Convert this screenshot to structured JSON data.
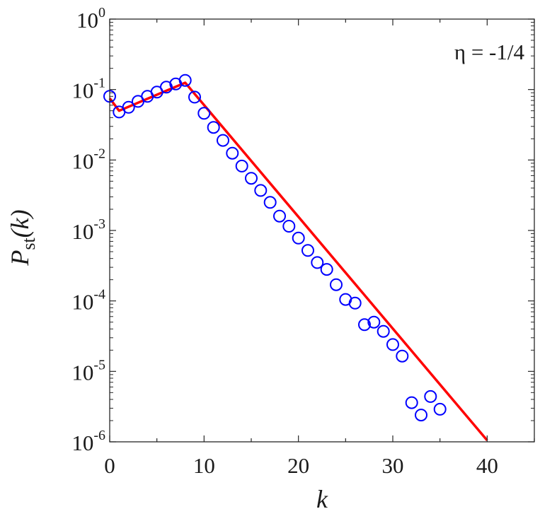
{
  "chart_data": {
    "type": "scatter",
    "xlabel": "k",
    "ylabel": {
      "main": "P",
      "subscript": "st",
      "arg": "(k)"
    },
    "xlim": [
      0,
      45
    ],
    "ylim": [
      1e-06,
      1
    ],
    "yscale": "log",
    "grid": false,
    "x_ticks": [
      {
        "value": 0,
        "label": "0"
      },
      {
        "value": 10,
        "label": "10"
      },
      {
        "value": 20,
        "label": "20"
      },
      {
        "value": 30,
        "label": "30"
      },
      {
        "value": 40,
        "label": "40"
      }
    ],
    "y_ticks": [
      {
        "value": 1e-06,
        "base": "10",
        "exp": "-6"
      },
      {
        "value": 1e-05,
        "base": "10",
        "exp": "-5"
      },
      {
        "value": 0.0001,
        "base": "10",
        "exp": "-4"
      },
      {
        "value": 0.001,
        "base": "10",
        "exp": "-3"
      },
      {
        "value": 0.01,
        "base": "10",
        "exp": "-2"
      },
      {
        "value": 0.1,
        "base": "10",
        "exp": "-1"
      },
      {
        "value": 1,
        "base": "10",
        "exp": "0"
      }
    ],
    "annotation": "η = -1/4",
    "series": [
      {
        "kind": "markers",
        "color": "#0000ff",
        "x": [
          0,
          1,
          2,
          3,
          4,
          5,
          6,
          7,
          8,
          9,
          10,
          11,
          12,
          13,
          14,
          15,
          16,
          17,
          18,
          19,
          20,
          21,
          22,
          23,
          24,
          25,
          26,
          27,
          28,
          29,
          30,
          31,
          32,
          33,
          34,
          35
        ],
        "y": [
          0.08,
          0.048,
          0.056,
          0.068,
          0.08,
          0.092,
          0.108,
          0.12,
          0.135,
          0.078,
          0.046,
          0.029,
          0.019,
          0.0125,
          0.0082,
          0.0055,
          0.0037,
          0.0025,
          0.0016,
          0.00115,
          0.00078,
          0.00052,
          0.00035,
          0.00028,
          0.00017,
          0.000105,
          9.3e-05,
          4.6e-05,
          5e-05,
          3.7e-05,
          2.4e-05,
          1.65e-05,
          3.6e-06,
          2.4e-06,
          4.4e-06,
          2.9e-06
        ]
      },
      {
        "kind": "line",
        "color": "#ff0000",
        "x": [
          0,
          1,
          8,
          40
        ],
        "y": [
          0.075,
          0.05,
          0.125,
          1.05e-06
        ]
      }
    ]
  }
}
